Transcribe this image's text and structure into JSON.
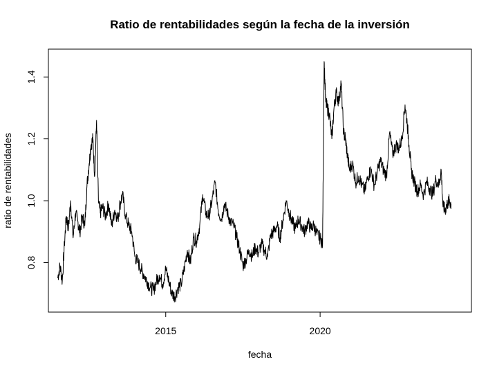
{
  "chart_data": {
    "type": "line",
    "title": "Ratio de rentabilidades según la fecha de la inversión",
    "xlabel": "fecha",
    "ylabel": "ratio de rentabilidades",
    "xlim": [
      2011.2,
      2024.9
    ],
    "ylim": [
      0.64,
      1.49
    ],
    "x_ticks": [
      2015,
      2020
    ],
    "y_ticks": [
      0.8,
      1.0,
      1.2,
      1.4
    ],
    "y_tick_labels": [
      "0.8",
      "1.0",
      "1.2",
      "1.4"
    ],
    "grid": false,
    "line_color": "#000000",
    "series": [
      {
        "x": [
          2011.5,
          2011.58,
          2011.65,
          2011.72,
          2011.78,
          2011.85,
          2011.92,
          2012.0,
          2012.08,
          2012.16,
          2012.22,
          2012.3,
          2012.38,
          2012.45,
          2012.52,
          2012.58,
          2012.64,
          2012.7,
          2012.76,
          2012.82,
          2012.88,
          2012.95,
          2013.05,
          2013.15,
          2013.25,
          2013.35,
          2013.45,
          2013.52,
          2013.6,
          2013.7,
          2013.8,
          2013.9,
          2014.0,
          2014.1,
          2014.2,
          2014.3,
          2014.4,
          2014.5,
          2014.6,
          2014.7,
          2014.8,
          2014.9,
          2015.0,
          2015.1,
          2015.2,
          2015.3,
          2015.4,
          2015.5,
          2015.6,
          2015.7,
          2015.8,
          2015.9,
          2016.0,
          2016.1,
          2016.2,
          2016.3,
          2016.4,
          2016.5,
          2016.6,
          2016.7,
          2016.8,
          2016.9,
          2017.0,
          2017.1,
          2017.2,
          2017.3,
          2017.4,
          2017.5,
          2017.6,
          2017.7,
          2017.8,
          2017.9,
          2018.0,
          2018.1,
          2018.2,
          2018.3,
          2018.4,
          2018.5,
          2018.6,
          2018.7,
          2018.8,
          2018.9,
          2019.0,
          2019.1,
          2019.2,
          2019.3,
          2019.4,
          2019.5,
          2019.6,
          2019.7,
          2019.8,
          2019.9,
          2020.0,
          2020.08,
          2020.13,
          2020.18,
          2020.23,
          2020.3,
          2020.38,
          2020.45,
          2020.52,
          2020.6,
          2020.68,
          2020.76,
          2020.82,
          2020.88,
          2020.95,
          2021.05,
          2021.15,
          2021.25,
          2021.35,
          2021.45,
          2021.55,
          2021.65,
          2021.75,
          2021.85,
          2021.95,
          2022.05,
          2022.15,
          2022.25,
          2022.35,
          2022.45,
          2022.55,
          2022.65,
          2022.75,
          2022.82,
          2022.88,
          2022.95,
          2023.05,
          2023.15,
          2023.25,
          2023.35,
          2023.45,
          2023.55,
          2023.65,
          2023.75,
          2023.85,
          2023.92,
          2023.98,
          2024.05,
          2024.12,
          2024.18,
          2024.24
        ],
        "y": [
          0.75,
          0.79,
          0.74,
          0.86,
          0.95,
          0.91,
          1.0,
          0.88,
          0.96,
          0.93,
          0.9,
          0.95,
          0.92,
          1.05,
          1.12,
          1.18,
          1.2,
          1.08,
          1.26,
          1.0,
          0.96,
          0.98,
          0.95,
          0.99,
          0.92,
          0.97,
          0.94,
          0.99,
          1.02,
          0.95,
          0.92,
          0.9,
          0.82,
          0.8,
          0.78,
          0.76,
          0.74,
          0.72,
          0.71,
          0.74,
          0.76,
          0.73,
          0.78,
          0.74,
          0.7,
          0.69,
          0.72,
          0.73,
          0.78,
          0.84,
          0.8,
          0.88,
          0.87,
          0.92,
          1.02,
          0.96,
          0.95,
          1.0,
          1.06,
          0.97,
          0.94,
          0.99,
          0.96,
          0.93,
          0.92,
          0.88,
          0.84,
          0.79,
          0.81,
          0.84,
          0.82,
          0.85,
          0.83,
          0.86,
          0.84,
          0.82,
          0.89,
          0.9,
          0.92,
          0.88,
          0.94,
          1.0,
          0.96,
          0.93,
          0.91,
          0.94,
          0.92,
          0.9,
          0.93,
          0.91,
          0.92,
          0.89,
          0.88,
          0.86,
          1.45,
          1.32,
          1.3,
          1.28,
          1.2,
          1.3,
          1.35,
          1.32,
          1.38,
          1.22,
          1.2,
          1.15,
          1.1,
          1.12,
          1.06,
          1.08,
          1.05,
          1.03,
          1.08,
          1.1,
          1.05,
          1.09,
          1.13,
          1.1,
          1.08,
          1.22,
          1.15,
          1.18,
          1.17,
          1.2,
          1.31,
          1.25,
          1.18,
          1.1,
          1.06,
          1.03,
          1.05,
          1.02,
          1.06,
          1.04,
          1.02,
          1.07,
          1.05,
          1.1,
          0.98,
          0.97,
          0.99,
          1.0,
          0.99
        ]
      }
    ]
  }
}
